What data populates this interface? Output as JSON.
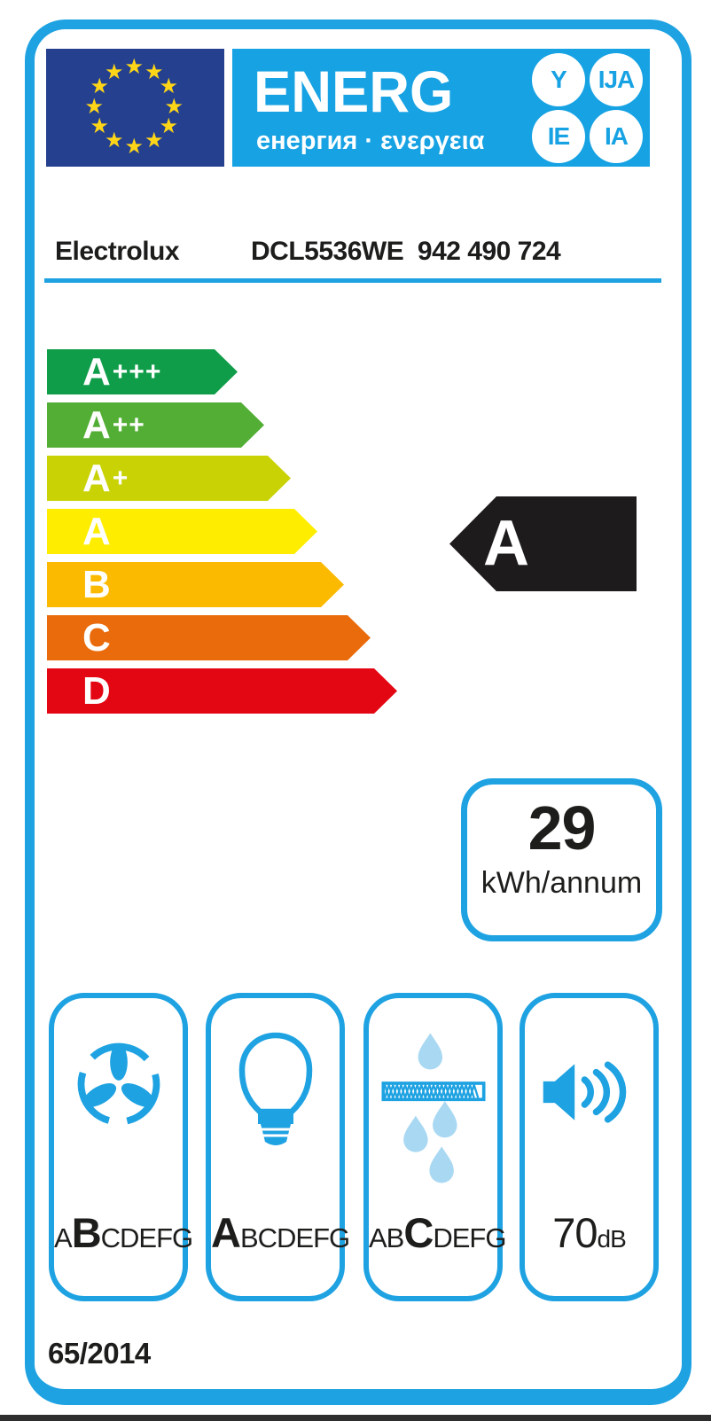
{
  "header": {
    "word": "ENERG",
    "sub": "енергия · ενεργεια",
    "circles": [
      "Y",
      "IJA",
      "IE",
      "IA"
    ]
  },
  "product": {
    "brand": "Electrolux",
    "model": "DCL5536WE  942 490 724"
  },
  "scale": [
    {
      "letter": "A",
      "suffix": "+++",
      "color": "#0f9d49"
    },
    {
      "letter": "A",
      "suffix": "++",
      "color": "#52ae34"
    },
    {
      "letter": "A",
      "suffix": "+",
      "color": "#c8d205"
    },
    {
      "letter": "A",
      "suffix": "",
      "color": "#ffed00"
    },
    {
      "letter": "B",
      "suffix": "",
      "color": "#fbba00"
    },
    {
      "letter": "C",
      "suffix": "",
      "color": "#e96b0b"
    },
    {
      "letter": "D",
      "suffix": "",
      "color": "#e30613"
    }
  ],
  "rating": {
    "class": "A",
    "arrow_color": "#1d1b1b"
  },
  "annual_energy": {
    "value": "29",
    "unit": "kWh/annum"
  },
  "metrics": [
    {
      "icon": "fan-icon",
      "pre": "A",
      "big": "B",
      "post": "CDEFG"
    },
    {
      "icon": "bulb-icon",
      "pre": "",
      "big": "A",
      "post": "BCDEFG"
    },
    {
      "icon": "grease-filter-icon",
      "pre": "AB",
      "big": "C",
      "post": "DEFG"
    },
    {
      "icon": "speaker-icon",
      "value": "70",
      "unit": "dB"
    }
  ],
  "regulation": "65/2014",
  "colors": {
    "accent": "#1ea2e2",
    "panel_blue": "#17a2e3",
    "flag_blue": "#24408f",
    "star_yellow": "#ffd617",
    "black_arrow": "#1d1b1b",
    "droplet_light_blue": "#a9d8f3"
  }
}
